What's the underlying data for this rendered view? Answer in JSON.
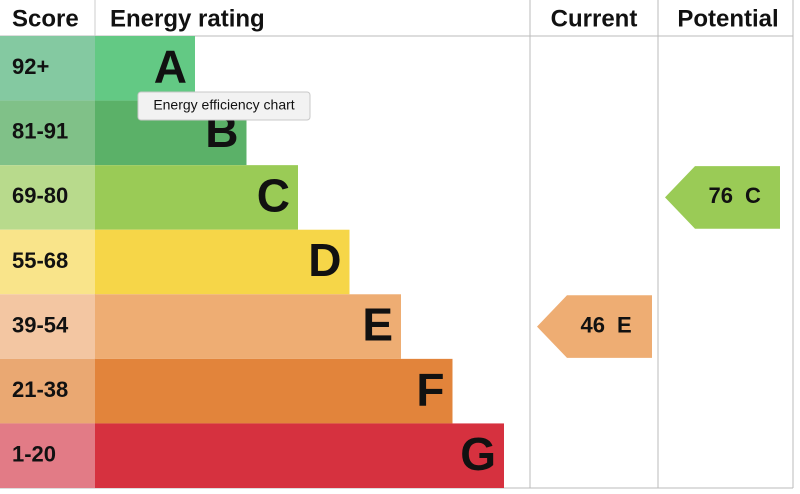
{
  "header": {
    "score": "Score",
    "rating": "Energy rating",
    "current": "Current",
    "potential": "Potential"
  },
  "bands": [
    {
      "score": "92+",
      "letter": "A",
      "color": "#63c984",
      "tint": "#84c9a1"
    },
    {
      "score": "81-91",
      "letter": "B",
      "color": "#5bb168",
      "tint": "#80c188"
    },
    {
      "score": "69-80",
      "letter": "C",
      "color": "#9acb56",
      "tint": "#b8da8c"
    },
    {
      "score": "55-68",
      "letter": "D",
      "color": "#f6d648",
      "tint": "#f9e48a"
    },
    {
      "score": "39-54",
      "letter": "E",
      "color": "#eead73",
      "tint": "#f3c6a2"
    },
    {
      "score": "21-38",
      "letter": "F",
      "color": "#e2843b",
      "tint": "#eaa872"
    },
    {
      "score": "1-20",
      "letter": "G",
      "color": "#d6313f",
      "tint": "#e27b86"
    }
  ],
  "current": {
    "value": "46",
    "letter": "E"
  },
  "potential": {
    "value": "76",
    "letter": "C"
  },
  "tooltip": "Energy efficiency chart"
}
